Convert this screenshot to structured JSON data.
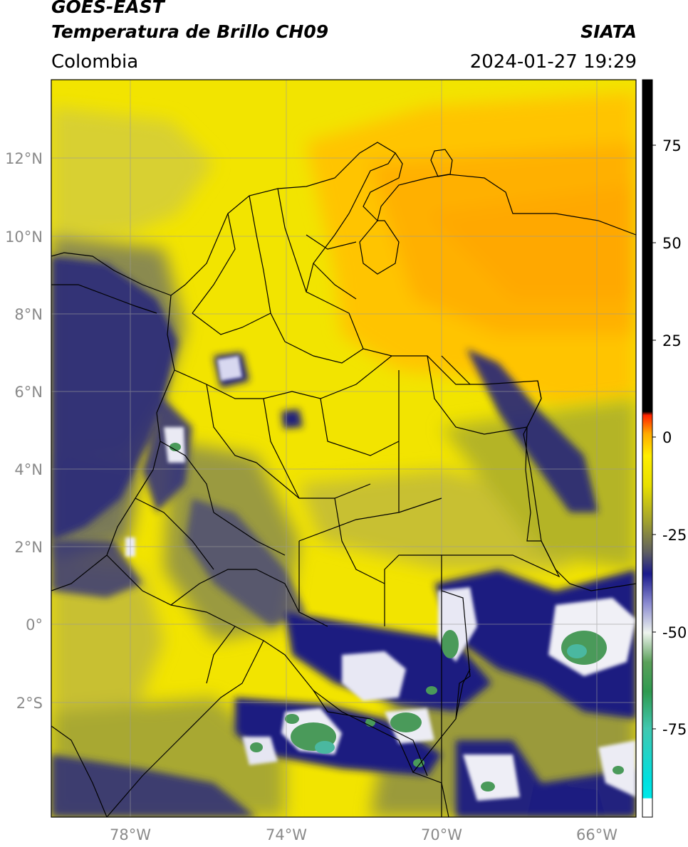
{
  "header": {
    "satellite": "GOES-EAST",
    "product": "Temperatura de Brillo CH09",
    "region": "Colombia",
    "organization": "SIATA",
    "timestamp": "2024-01-27 19:29"
  },
  "axes": {
    "lat_labels": [
      "12°N",
      "10°N",
      "8°N",
      "6°N",
      "4°N",
      "2°N",
      "0°",
      "2°S"
    ],
    "lon_labels": [
      "78°W",
      "74°W",
      "70°W",
      "66°W"
    ]
  },
  "colorbar": {
    "tick_labels": [
      "75",
      "50",
      "25",
      "0",
      "-25",
      "-50",
      "-75"
    ],
    "colors": {
      "hot": "#000000",
      "red": "#ff2200",
      "orange": "#ff9900",
      "yellow": "#ffee00",
      "olive": "#b0b020",
      "gray": "#707070",
      "navy": "#1a1a8c",
      "white": "#ffffff",
      "green": "#3a9a3a",
      "teal": "#40c8b0",
      "cyan": "#00e8e8"
    }
  },
  "map_colors": {
    "orange": "#ffb000",
    "yellow": "#f2e400",
    "olive": "#b4b428",
    "gray": "#6e6e60",
    "navy": "#22227a",
    "white": "#f4f4f8",
    "green": "#4a9a5a"
  }
}
